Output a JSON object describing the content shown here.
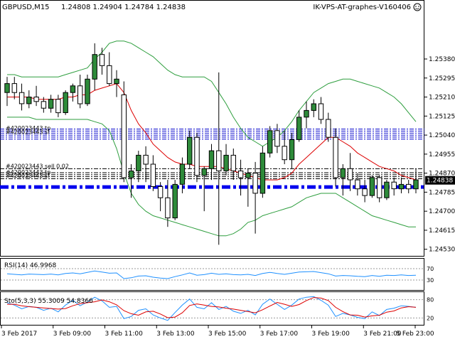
{
  "chart_data": {
    "type": "candlestick",
    "header": {
      "symbol": "GBPUSD,M15",
      "ohlc": "1.24808 1.24904 1.24784 1.24838",
      "right_label": "IK-VPS-AT-graphes-V160406"
    },
    "price_axis": {
      "ylim": [
        1.2451,
        1.2558
      ],
      "ticks": [
        "1.25380",
        "1.25295",
        "1.25210",
        "1.25125",
        "1.25040",
        "1.24955",
        "1.24870",
        "1.24785",
        "1.24700",
        "1.24615",
        "1.24530"
      ],
      "current_price": "1.24838"
    },
    "time_axis": {
      "labels": [
        "3 Feb 2017",
        "3 Feb 09:00",
        "3 Feb 11:00",
        "3 Feb 13:00",
        "3 Feb 15:00",
        "3 Feb 17:00",
        "3 Feb 19:00",
        "3 Feb 21:00",
        "5 Feb 23:00"
      ]
    },
    "candles": [
      {
        "o": 1.2523,
        "h": 1.253,
        "l": 1.2517,
        "c": 1.2527
      },
      {
        "o": 1.2527,
        "h": 1.253,
        "l": 1.252,
        "c": 1.2523
      },
      {
        "o": 1.2523,
        "h": 1.2527,
        "l": 1.2515,
        "c": 1.2518
      },
      {
        "o": 1.2518,
        "h": 1.2524,
        "l": 1.2516,
        "c": 1.2521
      },
      {
        "o": 1.2521,
        "h": 1.2526,
        "l": 1.2517,
        "c": 1.2519
      },
      {
        "o": 1.2519,
        "h": 1.2521,
        "l": 1.2514,
        "c": 1.2516
      },
      {
        "o": 1.2516,
        "h": 1.2522,
        "l": 1.2514,
        "c": 1.252
      },
      {
        "o": 1.252,
        "h": 1.2522,
        "l": 1.2512,
        "c": 1.2514
      },
      {
        "o": 1.2514,
        "h": 1.2524,
        "l": 1.2513,
        "c": 1.2523
      },
      {
        "o": 1.2523,
        "h": 1.2527,
        "l": 1.2519,
        "c": 1.2526
      },
      {
        "o": 1.2526,
        "h": 1.2531,
        "l": 1.2516,
        "c": 1.2518
      },
      {
        "o": 1.2518,
        "h": 1.2531,
        "l": 1.2517,
        "c": 1.2529
      },
      {
        "o": 1.2529,
        "h": 1.2545,
        "l": 1.2524,
        "c": 1.254
      },
      {
        "o": 1.254,
        "h": 1.2543,
        "l": 1.2531,
        "c": 1.2535
      },
      {
        "o": 1.2535,
        "h": 1.2541,
        "l": 1.2526,
        "c": 1.2527
      },
      {
        "o": 1.2527,
        "h": 1.2533,
        "l": 1.2521,
        "c": 1.2529
      },
      {
        "o": 1.2522,
        "h": 1.2528,
        "l": 1.2483,
        "c": 1.2485
      },
      {
        "o": 1.2485,
        "h": 1.2491,
        "l": 1.2476,
        "c": 1.2488
      },
      {
        "o": 1.2488,
        "h": 1.2497,
        "l": 1.2483,
        "c": 1.2495
      },
      {
        "o": 1.2495,
        "h": 1.2499,
        "l": 1.2483,
        "c": 1.2491
      },
      {
        "o": 1.2491,
        "h": 1.2495,
        "l": 1.2479,
        "c": 1.2481
      },
      {
        "o": 1.2481,
        "h": 1.2483,
        "l": 1.247,
        "c": 1.2476
      },
      {
        "o": 1.2476,
        "h": 1.2484,
        "l": 1.2463,
        "c": 1.2467
      },
      {
        "o": 1.2467,
        "h": 1.2484,
        "l": 1.2466,
        "c": 1.2482
      },
      {
        "o": 1.2482,
        "h": 1.2494,
        "l": 1.2478,
        "c": 1.2491
      },
      {
        "o": 1.2491,
        "h": 1.2506,
        "l": 1.2489,
        "c": 1.2503
      },
      {
        "o": 1.2503,
        "h": 1.2505,
        "l": 1.2483,
        "c": 1.2486
      },
      {
        "o": 1.2486,
        "h": 1.249,
        "l": 1.247,
        "c": 1.2489
      },
      {
        "o": 1.2489,
        "h": 1.25,
        "l": 1.2484,
        "c": 1.2497
      },
      {
        "o": 1.2497,
        "h": 1.2532,
        "l": 1.2455,
        "c": 1.2488
      },
      {
        "o": 1.2488,
        "h": 1.25,
        "l": 1.2486,
        "c": 1.2495
      },
      {
        "o": 1.2495,
        "h": 1.2498,
        "l": 1.2484,
        "c": 1.2488
      },
      {
        "o": 1.2488,
        "h": 1.2493,
        "l": 1.2477,
        "c": 1.2485
      },
      {
        "o": 1.2485,
        "h": 1.2489,
        "l": 1.2472,
        "c": 1.2487
      },
      {
        "o": 1.2487,
        "h": 1.2492,
        "l": 1.246,
        "c": 1.2478
      },
      {
        "o": 1.2478,
        "h": 1.2499,
        "l": 1.2476,
        "c": 1.2496
      },
      {
        "o": 1.2496,
        "h": 1.2508,
        "l": 1.2494,
        "c": 1.2506
      },
      {
        "o": 1.2506,
        "h": 1.2509,
        "l": 1.2496,
        "c": 1.2499
      },
      {
        "o": 1.2499,
        "h": 1.2506,
        "l": 1.2491,
        "c": 1.2493
      },
      {
        "o": 1.2493,
        "h": 1.2505,
        "l": 1.2489,
        "c": 1.2502
      },
      {
        "o": 1.2502,
        "h": 1.2515,
        "l": 1.2501,
        "c": 1.2512
      },
      {
        "o": 1.2512,
        "h": 1.2519,
        "l": 1.2507,
        "c": 1.2515
      },
      {
        "o": 1.2515,
        "h": 1.252,
        "l": 1.2512,
        "c": 1.2518
      },
      {
        "o": 1.2518,
        "h": 1.2521,
        "l": 1.2509,
        "c": 1.2511
      },
      {
        "o": 1.2511,
        "h": 1.2514,
        "l": 1.2501,
        "c": 1.2503
      },
      {
        "o": 1.2503,
        "h": 1.2507,
        "l": 1.2481,
        "c": 1.2485
      },
      {
        "o": 1.2485,
        "h": 1.2491,
        "l": 1.2477,
        "c": 1.2489
      },
      {
        "o": 1.2489,
        "h": 1.2496,
        "l": 1.2479,
        "c": 1.2484
      },
      {
        "o": 1.2484,
        "h": 1.2487,
        "l": 1.2477,
        "c": 1.248
      },
      {
        "o": 1.248,
        "h": 1.2484,
        "l": 1.2474,
        "c": 1.2477
      },
      {
        "o": 1.2477,
        "h": 1.2486,
        "l": 1.2476,
        "c": 1.2485
      },
      {
        "o": 1.2485,
        "h": 1.2486,
        "l": 1.2474,
        "c": 1.2476
      },
      {
        "o": 1.2476,
        "h": 1.2484,
        "l": 1.2475,
        "c": 1.2483
      },
      {
        "o": 1.2483,
        "h": 1.2485,
        "l": 1.2477,
        "c": 1.248
      },
      {
        "o": 1.248,
        "h": 1.2485,
        "l": 1.2478,
        "c": 1.2482
      },
      {
        "o": 1.2482,
        "h": 1.2484,
        "l": 1.2478,
        "c": 1.248
      },
      {
        "o": 1.248,
        "h": 1.2489,
        "l": 1.2478,
        "c": 1.2484
      }
    ],
    "bollinger_upper": [
      1.2531,
      1.2531,
      1.253,
      1.253,
      1.253,
      1.253,
      1.253,
      1.253,
      1.2531,
      1.2532,
      1.2533,
      1.2534,
      1.2538,
      1.2541,
      1.2545,
      1.2546,
      1.2546,
      1.2545,
      1.2543,
      1.2541,
      1.2539,
      1.2536,
      1.2533,
      1.2531,
      1.253,
      1.253,
      1.253,
      1.253,
      1.2528,
      1.2523,
      1.2518,
      1.2512,
      1.2507,
      1.2503,
      1.2501,
      1.2499,
      1.2501,
      1.2503,
      1.2506,
      1.251,
      1.2515,
      1.2519,
      1.2523,
      1.2525,
      1.2527,
      1.2528,
      1.2529,
      1.2529,
      1.2528,
      1.2527,
      1.2526,
      1.2525,
      1.2523,
      1.2521,
      1.2518,
      1.2514,
      1.251
    ],
    "bollinger_lower": [
      1.2512,
      1.2512,
      1.2512,
      1.2512,
      1.2511,
      1.2511,
      1.2511,
      1.2511,
      1.2511,
      1.2511,
      1.2511,
      1.2511,
      1.251,
      1.2509,
      1.2506,
      1.2498,
      1.2487,
      1.2478,
      1.2473,
      1.247,
      1.2468,
      1.2467,
      1.2466,
      1.2465,
      1.2464,
      1.2463,
      1.2462,
      1.2461,
      1.246,
      1.2459,
      1.2459,
      1.246,
      1.2462,
      1.2465,
      1.2466,
      1.2468,
      1.2469,
      1.247,
      1.2471,
      1.2472,
      1.2474,
      1.2476,
      1.2477,
      1.2478,
      1.2478,
      1.2478,
      1.2476,
      1.2474,
      1.2472,
      1.247,
      1.2468,
      1.2467,
      1.2466,
      1.2465,
      1.2464,
      1.2463,
      1.2463
    ],
    "moving_average": [
      1.2521,
      1.2521,
      1.2521,
      1.2521,
      1.252,
      1.252,
      1.252,
      1.252,
      1.2521,
      1.2521,
      1.2522,
      1.2522,
      1.2524,
      1.2525,
      1.2526,
      1.2527,
      1.2523,
      1.2515,
      1.2509,
      1.2505,
      1.25,
      1.2497,
      1.2494,
      1.2492,
      1.2491,
      1.2491,
      1.249,
      1.249,
      1.249,
      1.249,
      1.2489,
      1.2488,
      1.2487,
      1.2486,
      1.2485,
      1.2484,
      1.2484,
      1.2484,
      1.2485,
      1.2487,
      1.2491,
      1.2494,
      1.2497,
      1.25,
      1.2503,
      1.2503,
      1.2501,
      1.2499,
      1.2496,
      1.2494,
      1.2492,
      1.249,
      1.2489,
      1.2488,
      1.2486,
      1.2485,
      1.2484
    ],
    "order_labels": [
      "#420023443 sell 0.02",
      "#420023443 tp",
      "#420023443 sl"
    ],
    "rsi": {
      "label": "RSI(14) 46.9968",
      "ylim": [
        0,
        100
      ],
      "ticks": [
        "70",
        "30"
      ],
      "values": [
        52,
        50,
        48,
        51,
        50,
        49,
        51,
        48,
        53,
        55,
        52,
        57,
        62,
        58,
        54,
        55,
        35,
        38,
        44,
        45,
        40,
        37,
        35,
        42,
        48,
        55,
        47,
        49,
        54,
        50,
        52,
        49,
        48,
        50,
        46,
        53,
        57,
        53,
        50,
        54,
        58,
        59,
        60,
        56,
        52,
        44,
        46,
        45,
        43,
        42,
        46,
        43,
        47,
        46,
        48,
        46,
        47
      ]
    },
    "stochastic": {
      "label": "Sto(5,3,3) 55.3009 54.8366",
      "ylim": [
        0,
        100
      ],
      "ticks": [
        "80",
        "20"
      ],
      "main": [
        70,
        62,
        50,
        58,
        55,
        45,
        52,
        40,
        62,
        78,
        60,
        72,
        88,
        76,
        55,
        58,
        18,
        25,
        45,
        50,
        30,
        20,
        12,
        38,
        62,
        82,
        55,
        50,
        70,
        48,
        58,
        42,
        35,
        45,
        30,
        65,
        82,
        65,
        48,
        62,
        82,
        88,
        90,
        78,
        62,
        25,
        35,
        30,
        22,
        18,
        40,
        28,
        48,
        52,
        60,
        58,
        55
      ],
      "signal": [
        65,
        65,
        60,
        57,
        55,
        53,
        51,
        49,
        51,
        60,
        67,
        70,
        73,
        79,
        73,
        63,
        44,
        34,
        29,
        40,
        42,
        33,
        21,
        23,
        37,
        61,
        66,
        62,
        58,
        56,
        52,
        49,
        45,
        41,
        37,
        47,
        59,
        71,
        65,
        58,
        64,
        77,
        87,
        85,
        77,
        55,
        41,
        30,
        29,
        23,
        27,
        29,
        39,
        43,
        53,
        57,
        55
      ]
    }
  }
}
